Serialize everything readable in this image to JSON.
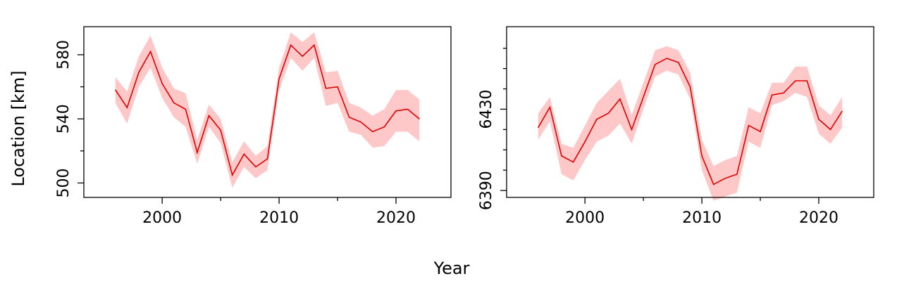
{
  "figure": {
    "ylabel": "Location [km]",
    "xlabel": "Year"
  },
  "chart_data": [
    {
      "type": "area",
      "title": "",
      "xlabel": "",
      "ylabel": "",
      "xlim": [
        1993.3,
        2024.7
      ],
      "ylim": [
        491.0,
        597.5
      ],
      "x_ticks": [
        2000,
        2010,
        2020
      ],
      "x_tick_labels": [
        "2000",
        "2010",
        "2020"
      ],
      "x_minor_ticks": [
        2005,
        2015
      ],
      "y_ticks": [
        500,
        540,
        580
      ],
      "y_tick_labels": [
        "500",
        "540",
        "580"
      ],
      "y_minor_ticks": [
        520,
        560
      ],
      "grid": false,
      "legend": "none",
      "colors": {
        "line": "#e00000",
        "band": "#ffc8c8"
      },
      "series": [
        {
          "x": [
            1996,
            1997,
            1998,
            1999,
            2000,
            2001,
            2002,
            2003,
            2004,
            2005,
            2006,
            2007,
            2008,
            2009,
            2010,
            2011,
            2012,
            2013,
            2014,
            2015,
            2016,
            2017,
            2018,
            2019,
            2020,
            2021,
            2022
          ],
          "values": [
            558,
            547,
            569,
            582,
            562,
            550,
            546,
            519,
            542,
            533,
            505,
            518,
            510,
            515,
            565,
            586,
            579,
            586,
            559,
            560,
            541,
            538,
            532,
            535,
            545,
            546,
            540
          ],
          "lower": [
            550,
            537,
            560,
            572,
            553,
            541,
            535,
            512,
            535,
            525,
            497,
            510,
            503,
            508,
            558,
            578,
            570,
            578,
            548,
            550,
            532,
            530,
            522,
            523,
            532,
            532,
            526
          ],
          "upper": [
            566,
            557,
            579,
            592,
            572,
            559,
            556,
            527,
            549,
            540,
            513,
            526,
            517,
            523,
            572,
            594,
            588,
            594,
            569,
            570,
            550,
            547,
            542,
            546,
            558,
            558,
            552
          ]
        }
      ]
    },
    {
      "type": "area",
      "title": "",
      "xlabel": "",
      "ylabel": "",
      "xlim": [
        1993.3,
        2024.7
      ],
      "ylim": [
        6386.6,
        6470.6
      ],
      "x_ticks": [
        2000,
        2010,
        2020
      ],
      "x_tick_labels": [
        "2000",
        "2010",
        "2020"
      ],
      "x_minor_ticks": [
        2005,
        2015
      ],
      "y_ticks": [
        6390,
        6430
      ],
      "y_tick_labels": [
        "6390",
        "6430"
      ],
      "y_minor_ticks": [
        6400,
        6410,
        6420,
        6440,
        6450,
        6460
      ],
      "grid": false,
      "legend": "none",
      "colors": {
        "line": "#e00000",
        "band": "#ffc8c8"
      },
      "series": [
        {
          "x": [
            1996,
            1997,
            1998,
            1999,
            2000,
            2001,
            2002,
            2003,
            2004,
            2005,
            2006,
            2007,
            2008,
            2009,
            2010,
            2011,
            2012,
            2013,
            2014,
            2015,
            2016,
            2017,
            2018,
            2019,
            2020,
            2021,
            2022
          ],
          "values": [
            6421,
            6431,
            6407,
            6404,
            6414,
            6425,
            6428,
            6435,
            6420,
            6436,
            6452,
            6455,
            6453,
            6441,
            6407,
            6393,
            6396,
            6398,
            6422,
            6419,
            6437,
            6438,
            6444,
            6444,
            6425,
            6420,
            6429
          ],
          "lower": [
            6415,
            6424,
            6398,
            6395,
            6405,
            6414,
            6417,
            6423,
            6413,
            6430,
            6446,
            6449,
            6447,
            6435,
            6400,
            6385,
            6387,
            6389,
            6414,
            6411,
            6432,
            6434,
            6438,
            6436,
            6418,
            6413,
            6421
          ],
          "upper": [
            6428,
            6436,
            6413,
            6411,
            6422,
            6433,
            6439,
            6445,
            6427,
            6443,
            6459,
            6461,
            6459,
            6448,
            6415,
            6402,
            6405,
            6407,
            6431,
            6428,
            6443,
            6443,
            6451,
            6451,
            6432,
            6427,
            6436
          ]
        }
      ]
    }
  ]
}
